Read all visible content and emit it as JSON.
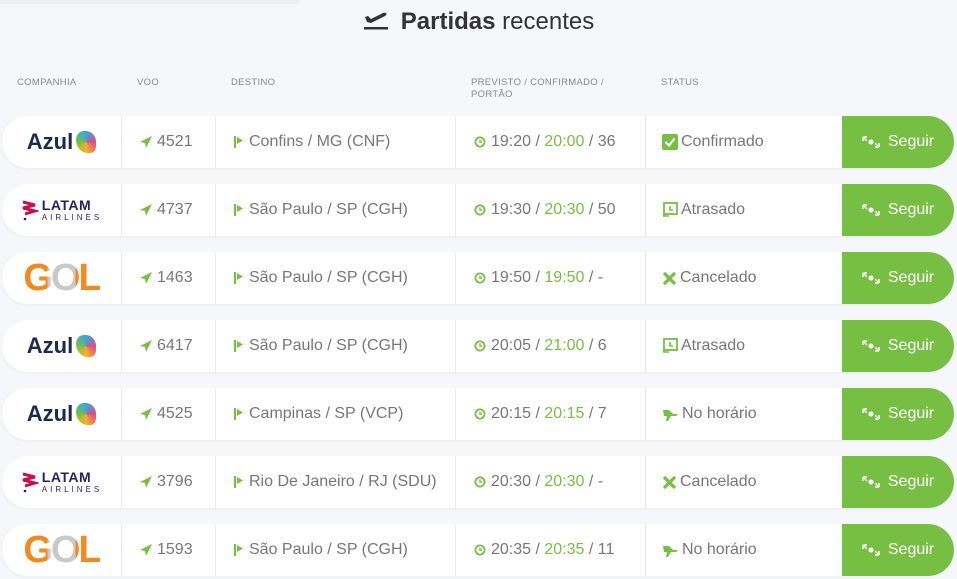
{
  "title": {
    "bold": "Partidas",
    "rest": " recentes"
  },
  "headers": {
    "company": "COMPANHIA",
    "flight": "VOO",
    "destination": "DESTINO",
    "times_line1": "PREVISTO / CONFIRMADO /",
    "times_line2": "PORTÃO",
    "status": "STATUS"
  },
  "colors": {
    "accent": "#76bf43",
    "text": "#777777"
  },
  "follow_label": "Seguir",
  "rows": [
    {
      "airline": "Azul",
      "flight": "4521",
      "destination": "Confins / MG (CNF)",
      "scheduled": "19:20",
      "confirmed": "20:00",
      "gate": "36",
      "status": "Confirmado",
      "status_icon": "check-square-icon"
    },
    {
      "airline": "LATAM",
      "flight": "4737",
      "destination": "São Paulo / SP (CGH)",
      "scheduled": "19:30",
      "confirmed": "20:30",
      "gate": "50",
      "status": "Atrasado",
      "status_icon": "delayed-clock-icon"
    },
    {
      "airline": "GOL",
      "flight": "1463",
      "destination": "São Paulo / SP (CGH)",
      "scheduled": "19:50",
      "confirmed": "19:50",
      "gate": "-",
      "status": "Cancelado",
      "status_icon": "x-icon"
    },
    {
      "airline": "Azul",
      "flight": "6417",
      "destination": "São Paulo / SP (CGH)",
      "scheduled": "20:05",
      "confirmed": "21:00",
      "gate": "6",
      "status": "Atrasado",
      "status_icon": "delayed-clock-icon"
    },
    {
      "airline": "Azul",
      "flight": "4525",
      "destination": "Campinas / SP (VCP)",
      "scheduled": "20:15",
      "confirmed": "20:15",
      "gate": "7",
      "status": "No horário",
      "status_icon": "on-time-plane-icon"
    },
    {
      "airline": "LATAM",
      "flight": "3796",
      "destination": "Rio De Janeiro / RJ (SDU)",
      "scheduled": "20:30",
      "confirmed": "20:30",
      "gate": "-",
      "status": "Cancelado",
      "status_icon": "x-icon"
    },
    {
      "airline": "GOL",
      "flight": "1593",
      "destination": "São Paulo / SP (CGH)",
      "scheduled": "20:35",
      "confirmed": "20:35",
      "gate": "11",
      "status": "No horário",
      "status_icon": "on-time-plane-icon"
    }
  ],
  "logos": {
    "Azul": "Azul",
    "LATAM": [
      "LATAM",
      "AIRLINES"
    ],
    "GOL": "GOL"
  }
}
